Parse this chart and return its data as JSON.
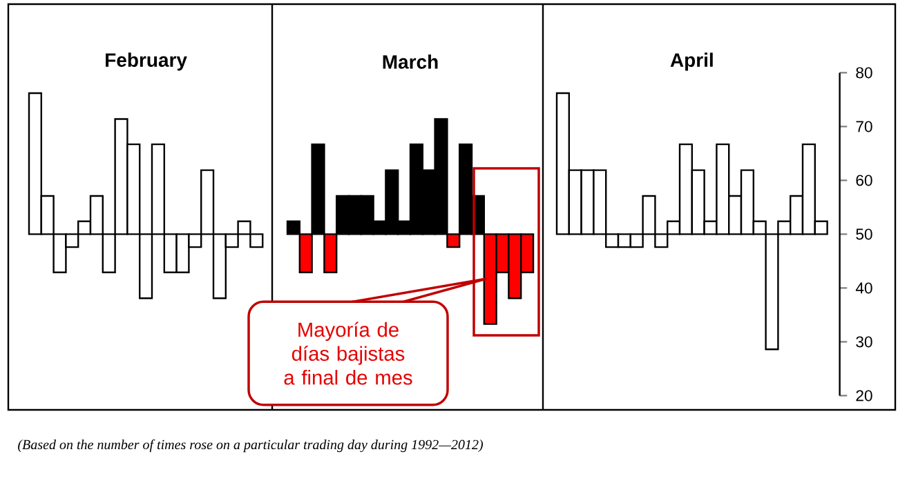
{
  "chart_data": [
    {
      "type": "bar",
      "title": "February",
      "categories": [
        null,
        null,
        null,
        null,
        null,
        null,
        null,
        null,
        null,
        null,
        null,
        null,
        null,
        null,
        null,
        null,
        null,
        null,
        null
      ],
      "base": [
        50,
        50,
        50,
        50,
        50,
        50,
        50,
        50,
        50,
        50,
        50,
        50,
        50,
        50,
        50,
        50,
        50,
        50,
        50
      ],
      "values": [
        26.2,
        7.1,
        -7.1,
        -2.4,
        2.4,
        7.1,
        -7.1,
        21.4,
        16.7,
        -11.9,
        16.7,
        -7.1,
        -7.1,
        -2.4,
        11.9,
        -11.9,
        -2.4,
        2.4,
        -2.4
      ],
      "color": "#ffffff",
      "ylim": [
        20,
        80
      ],
      "tick_labels": false,
      "annotations": [
        "(Based on the number of times rose on a particular trading day during 1992—2012)"
      ]
    },
    {
      "type": "bar",
      "title": "March",
      "categories": [
        null,
        null,
        null,
        null,
        null,
        null,
        null,
        null,
        null,
        null,
        null,
        null,
        null,
        null,
        null,
        null,
        null,
        null,
        null,
        null
      ],
      "base": [
        50,
        50,
        50,
        50,
        50,
        50,
        50,
        50,
        50,
        50,
        50,
        50,
        50,
        50,
        50,
        50,
        50,
        50,
        50,
        50
      ],
      "values": [
        2.4,
        -7.1,
        16.7,
        -7.1,
        7.1,
        7.1,
        7.1,
        2.4,
        11.9,
        2.4,
        16.7,
        11.9,
        21.4,
        -2.4,
        16.7,
        7.1,
        -16.7,
        -7.1,
        -11.9,
        -7.1
      ],
      "colors": [
        "#000000",
        "#ff0000",
        "#000000",
        "#ff0000",
        "#000000",
        "#000000",
        "#000000",
        "#000000",
        "#000000",
        "#000000",
        "#000000",
        "#000000",
        "#000000",
        "#ff0000",
        "#000000",
        "#000000",
        "#ff0000",
        "#ff0000",
        "#ff0000",
        "#ff0000"
      ],
      "ylim": [
        20,
        80
      ],
      "tick_labels": false,
      "annotations": [
        "Mayoría de días bajistas a final de mes"
      ]
    },
    {
      "type": "bar",
      "title": "April",
      "categories": [
        null,
        null,
        null,
        null,
        null,
        null,
        null,
        null,
        null,
        null,
        null,
        null,
        null,
        null,
        null,
        null,
        null,
        null,
        null,
        null,
        null,
        null
      ],
      "base": [
        50,
        50,
        50,
        50,
        50,
        50,
        50,
        50,
        50,
        50,
        50,
        50,
        50,
        50,
        50,
        50,
        50,
        50,
        50,
        50,
        50,
        50
      ],
      "values": [
        26.2,
        11.9,
        11.9,
        11.9,
        -2.4,
        -2.4,
        -2.4,
        7.1,
        -2.4,
        2.4,
        16.7,
        11.9,
        2.4,
        16.7,
        7.1,
        11.9,
        2.4,
        -21.4,
        2.4,
        7.1,
        16.7,
        2.4
      ],
      "color": "#ffffff",
      "ylim": [
        20,
        80
      ],
      "yticks": [
        20,
        30,
        40,
        50,
        60,
        70,
        80
      ],
      "tick_labels": "y"
    }
  ]
}
